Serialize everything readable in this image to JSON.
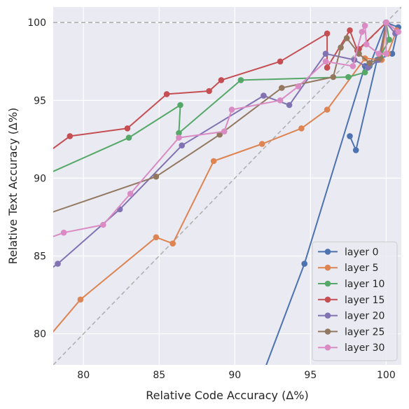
{
  "chart_data": {
    "type": "line",
    "title": "",
    "xlabel": "Relative Code Accuracy (Δ%)",
    "ylabel": "Relative Text Accuracy (Δ%)",
    "xlim": [
      78,
      101
    ],
    "ylim": [
      78,
      101
    ],
    "xticks": [
      80,
      85,
      90,
      95,
      100
    ],
    "yticks": [
      80,
      85,
      90,
      95,
      100
    ],
    "grid": true,
    "background": "#eaeaf2",
    "reference_lines": [
      {
        "kind": "horizontal",
        "y": 100,
        "color": "#b0b0b0",
        "style": "dashed"
      },
      {
        "kind": "diagonal",
        "from": [
          78,
          78
        ],
        "to": [
          101,
          101
        ],
        "color": "#b0b0b0",
        "style": "dashed"
      }
    ],
    "legend_position": "bottom-right",
    "series": [
      {
        "name": "layer 0",
        "color": "#4c72b0",
        "points": [
          [
            91.5,
            76.5
          ],
          [
            94.6,
            84.5
          ],
          [
            98.6,
            97.2
          ],
          [
            98.9,
            97.2
          ],
          [
            100.0,
            100.0
          ],
          [
            100.8,
            99.7
          ],
          [
            100.4,
            98.0
          ],
          [
            99.4,
            97.6
          ],
          [
            98.0,
            91.8
          ],
          [
            97.6,
            92.7
          ]
        ]
      },
      {
        "name": "layer 5",
        "color": "#dd8452",
        "points": [
          [
            77.0,
            79.0
          ],
          [
            79.8,
            82.2
          ],
          [
            84.8,
            86.2
          ],
          [
            85.9,
            85.8
          ],
          [
            88.6,
            91.1
          ],
          [
            91.8,
            92.2
          ],
          [
            94.4,
            93.2
          ],
          [
            96.1,
            94.4
          ],
          [
            98.6,
            97.7
          ],
          [
            99.7,
            97.6
          ],
          [
            100.0,
            100.0
          ],
          [
            100.7,
            99.5
          ],
          [
            100.1,
            98.0
          ]
        ]
      },
      {
        "name": "layer 10",
        "color": "#55a868",
        "points": [
          [
            77.0,
            90.0
          ],
          [
            83.0,
            92.6
          ],
          [
            86.4,
            94.7
          ],
          [
            86.3,
            92.9
          ],
          [
            90.4,
            96.3
          ],
          [
            97.5,
            96.5
          ],
          [
            98.6,
            96.8
          ],
          [
            99.6,
            97.8
          ],
          [
            100.2,
            98.9
          ],
          [
            100.0,
            100.0
          ]
        ]
      },
      {
        "name": "layer 15",
        "color": "#c44e52",
        "points": [
          [
            77.0,
            91.2
          ],
          [
            79.1,
            92.7
          ],
          [
            82.9,
            93.2
          ],
          [
            85.5,
            95.4
          ],
          [
            88.3,
            95.6
          ],
          [
            89.1,
            96.3
          ],
          [
            93.0,
            97.5
          ],
          [
            96.1,
            99.3
          ],
          [
            96.1,
            97.1
          ],
          [
            97.6,
            99.5
          ],
          [
            98.1,
            98.2
          ],
          [
            98.2,
            98.3
          ],
          [
            100.0,
            100.0
          ]
        ]
      },
      {
        "name": "layer 20",
        "color": "#8172b2",
        "points": [
          [
            77.0,
            83.6
          ],
          [
            78.3,
            84.5
          ],
          [
            82.4,
            88.0
          ],
          [
            86.5,
            92.1
          ],
          [
            91.9,
            95.3
          ],
          [
            93.6,
            94.7
          ],
          [
            96.0,
            98.0
          ],
          [
            97.9,
            97.6
          ],
          [
            98.8,
            97.1
          ],
          [
            99.5,
            97.6
          ],
          [
            100.0,
            100.0
          ],
          [
            100.6,
            99.3
          ]
        ]
      },
      {
        "name": "layer 25",
        "color": "#937860",
        "points": [
          [
            77.0,
            87.5
          ],
          [
            84.8,
            90.1
          ],
          [
            89.0,
            92.8
          ],
          [
            93.1,
            95.8
          ],
          [
            96.5,
            96.5
          ],
          [
            97.0,
            98.4
          ],
          [
            97.4,
            99.0
          ],
          [
            98.2,
            98.0
          ],
          [
            98.9,
            97.4
          ],
          [
            99.6,
            97.7
          ],
          [
            100.0,
            100.0
          ]
        ]
      },
      {
        "name": "layer 30",
        "color": "#da8bc3",
        "points": [
          [
            77.0,
            85.9
          ],
          [
            78.7,
            86.5
          ],
          [
            81.3,
            87.0
          ],
          [
            83.1,
            89.0
          ],
          [
            86.3,
            92.6
          ],
          [
            89.3,
            93.0
          ],
          [
            89.8,
            94.4
          ],
          [
            93.0,
            95.0
          ],
          [
            94.2,
            95.9
          ],
          [
            96.0,
            97.5
          ],
          [
            97.8,
            97.2
          ],
          [
            98.4,
            99.4
          ],
          [
            98.6,
            99.8
          ],
          [
            98.7,
            98.6
          ],
          [
            99.5,
            98.0
          ],
          [
            100.0,
            98.0
          ],
          [
            100.0,
            100.0
          ],
          [
            100.8,
            99.4
          ]
        ]
      }
    ]
  }
}
